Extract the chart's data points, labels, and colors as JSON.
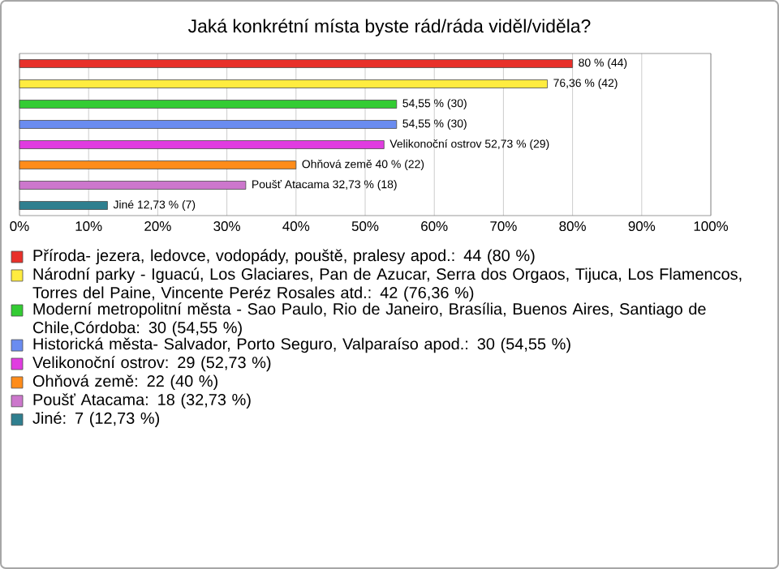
{
  "chart_data": {
    "type": "bar",
    "orientation": "horizontal",
    "title": "Jaká konkrétní místa byste rád/ráda viděl/viděla?",
    "categories": [
      null
    ],
    "series": [
      {
        "name": "Příroda- jezera, ledovce, vodopády, pouště, pralesy apod.: 44 (80 %)",
        "color": "#e8302a",
        "values": [
          80
        ],
        "value_labels": [
          "80 % (44)"
        ]
      },
      {
        "name": "Národní parky - Iguacú, Los Glaciares, Pan de Azucar, Serra dos Orgaos, Tijuca, Los Flamencos, Torres del Paine, Vincente Peréz Rosales atd.: 42 (76,36 %)",
        "color": "#ffec40",
        "values": [
          76.36
        ],
        "value_labels": [
          "76,36 % (42)"
        ]
      },
      {
        "name": "Moderní metropolitní města - Sao Paulo, Rio de Janeiro, Brasília, Buenos Aires, Santiago de Chile,Córdoba: 30 (54,55 %)",
        "color": "#33cc33",
        "values": [
          54.55
        ],
        "value_labels": [
          "54,55 % (30)"
        ]
      },
      {
        "name": "Historická města- Salvador, Porto Seguro, Valparaíso apod.: 30 (54,55 %)",
        "color": "#6a8cf0",
        "values": [
          54.55
        ],
        "value_labels": [
          "54,55 % (30)"
        ]
      },
      {
        "name": "Velikonoční ostrov: 29 (52,73 %)",
        "color": "#e03ce0",
        "values": [
          52.73
        ],
        "value_labels": [
          "Velikonoční ostrov 52,73 % (29)"
        ]
      },
      {
        "name": "Ohňová země: 22 (40 %)",
        "color": "#ff8c1a",
        "values": [
          40
        ],
        "value_labels": [
          "Ohňová země 40 % (22)"
        ]
      },
      {
        "name": "Poušť Atacama: 18 (32,73 %)",
        "color": "#cc77cc",
        "values": [
          32.73
        ],
        "value_labels": [
          "Poušť Atacama 32,73 % (18)"
        ]
      },
      {
        "name": "Jiné: 7 (12,73 %)",
        "color": "#2f7f8f",
        "values": [
          12.73
        ],
        "value_labels": [
          "Jiné 12,73 % (7)"
        ]
      }
    ],
    "xlim": [
      0,
      100
    ],
    "xticks": [
      {
        "value": 0,
        "label": "0%"
      },
      {
        "value": 10,
        "label": "10%"
      },
      {
        "value": 20,
        "label": "20%"
      },
      {
        "value": 30,
        "label": "30%"
      },
      {
        "value": 40,
        "label": "40%"
      },
      {
        "value": 50,
        "label": "50%"
      },
      {
        "value": 60,
        "label": "60%"
      },
      {
        "value": 70,
        "label": "70%"
      },
      {
        "value": 80,
        "label": "80%"
      },
      {
        "value": 90,
        "label": "90%"
      },
      {
        "value": 100,
        "label": "100%"
      }
    ],
    "grid": "x",
    "legend": "bottom"
  }
}
